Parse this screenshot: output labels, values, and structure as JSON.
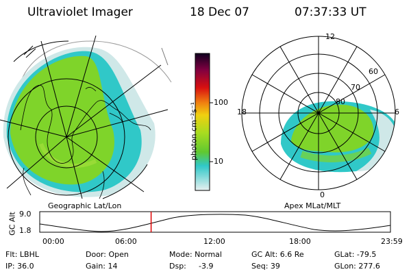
{
  "header": {
    "instrument": "Ultraviolet Imager",
    "date": "18 Dec 07",
    "time": "07:37:33 UT"
  },
  "colorbar": {
    "unit_label": "photon cm⁻²s⁻¹",
    "ticks": [
      "100",
      "10"
    ]
  },
  "left_panel": {
    "caption": "Geographic Lat/Lon"
  },
  "right_panel": {
    "caption": "Apex MLat/MLT",
    "mlt_labels": {
      "top": "12",
      "left": "18",
      "right": "6",
      "bottom": "0"
    },
    "lat_labels": [
      "60",
      "70",
      "80"
    ]
  },
  "altitude_plot": {
    "axis_label": "GC Alt",
    "y_max": "9.0",
    "y_min": "1.8",
    "time_labels": [
      "00:00",
      "06:00",
      "12:00",
      "18:00",
      "23:59"
    ],
    "marker_time": "07:37"
  },
  "info": {
    "flt": "Flt: LBHL",
    "ip": "IP: 36.0",
    "door": "Door: Open",
    "gain": "Gain: 14",
    "mode": "Mode: Normal",
    "dsp_label": "Dsp:",
    "dsp_value": "-3.9",
    "gcalt": "GC Alt: 6.6 Re",
    "seq": "Seq: 39",
    "glat": "GLat: -79.5",
    "glon": "GLon: 277.6"
  },
  "colors": {
    "aurora_green": "#7fd42a",
    "aurora_cyan": "#30c8c8",
    "aurora_pale": "#cfe8e8",
    "marker": "#e00000"
  }
}
